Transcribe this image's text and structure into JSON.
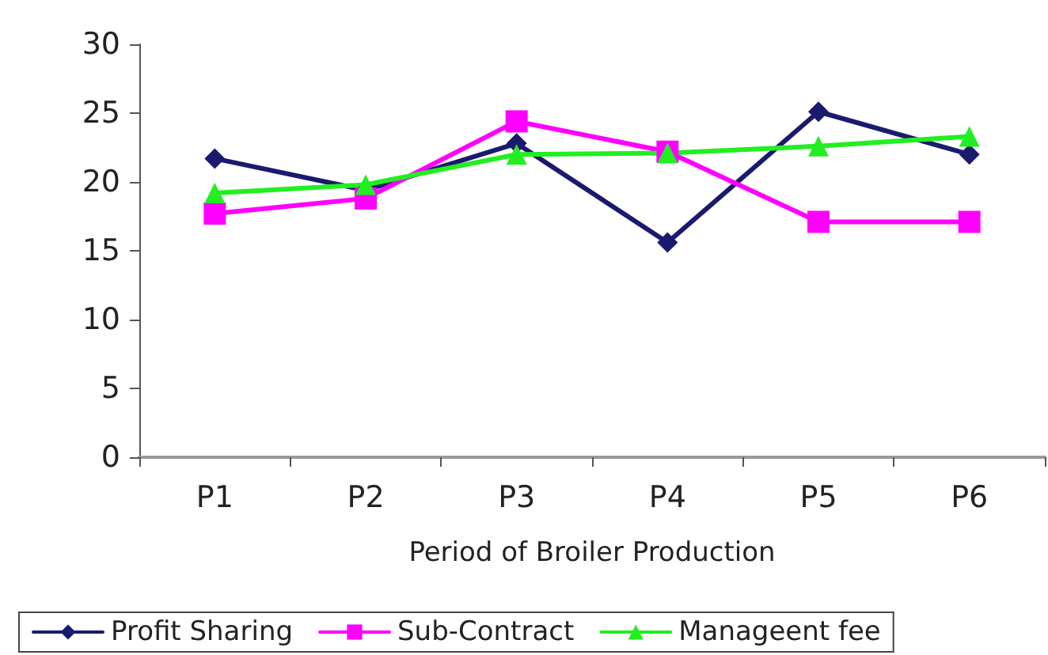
{
  "chart_data": {
    "type": "line",
    "xlabel": "Period of Broiler Production",
    "categories": [
      "P1",
      "P2",
      "P3",
      "P4",
      "P5",
      "P6"
    ],
    "series": [
      {
        "name": "Profit Sharing",
        "color": "#1a1a6e",
        "marker": "diamond",
        "values": [
          21.7,
          19.4,
          22.8,
          15.6,
          25.1,
          22.0
        ]
      },
      {
        "name": "Sub-Contract",
        "color": "#ff00ff",
        "marker": "square",
        "values": [
          17.7,
          18.8,
          24.4,
          22.2,
          17.1,
          17.1
        ]
      },
      {
        "name": "Manageent fee",
        "color": "#22ee22",
        "marker": "triangle",
        "values": [
          19.2,
          19.8,
          22.0,
          22.1,
          22.6,
          23.3
        ]
      }
    ],
    "ylim": [
      0,
      30
    ],
    "yticks": [
      0,
      5,
      10,
      15,
      20,
      25,
      30
    ],
    "grid": false,
    "legend": "bottom",
    "line_style": "solid"
  }
}
